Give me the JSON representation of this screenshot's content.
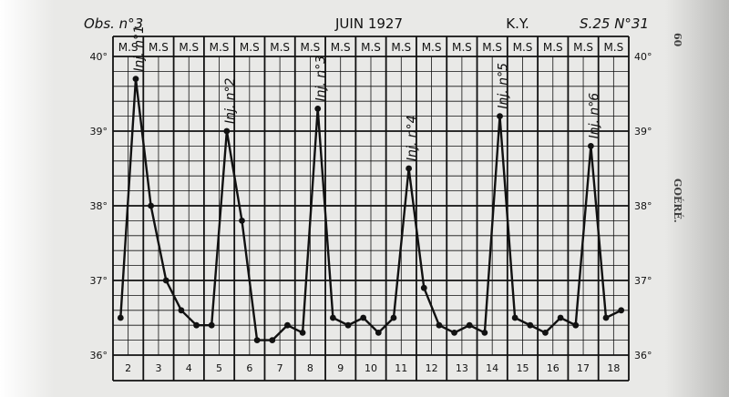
{
  "header": {
    "obs": "Obs. n°3",
    "title": "JUIN 1927",
    "patient": "K.Y.",
    "ref": "S.25  N°31"
  },
  "margin": {
    "page_number": "60",
    "side_label": "GOÉRÉ."
  },
  "chart_data": {
    "type": "line",
    "title": "JUIN 1927",
    "xlabel": "",
    "ylabel": "",
    "ylim": [
      36,
      40
    ],
    "yticks": [
      36,
      37,
      38,
      39,
      40
    ],
    "ytick_labels": [
      "36°",
      "37°",
      "38°",
      "39°",
      "40°"
    ],
    "slot_label": "M.S",
    "days": [
      "2",
      "3",
      "4",
      "5",
      "6",
      "7",
      "8",
      "9",
      "10",
      "11",
      "12",
      "13",
      "14",
      "15",
      "16",
      "17",
      "18"
    ],
    "grid": true,
    "series": [
      {
        "values": [
          36.5,
          39.7,
          38.0,
          37.0,
          36.6,
          36.4,
          36.4,
          39.0,
          37.8,
          36.2,
          36.2,
          36.4,
          36.3,
          39.3,
          36.5,
          36.4,
          36.5,
          36.3,
          36.5,
          38.5,
          36.9,
          36.4,
          36.3,
          36.4,
          36.3,
          39.2,
          36.5,
          36.4,
          36.3,
          36.5,
          36.4,
          38.8,
          36.5,
          36.6
        ]
      }
    ],
    "annotations": [
      {
        "text": "Inj. n°1",
        "point_index": 1
      },
      {
        "text": "Inj. n°2",
        "point_index": 7
      },
      {
        "text": "Inj. n°3",
        "point_index": 13
      },
      {
        "text": "Inj. n°4",
        "point_index": 19
      },
      {
        "text": "Inj. n°5",
        "point_index": 25
      },
      {
        "text": "Inj. n°6",
        "point_index": 31
      }
    ]
  }
}
